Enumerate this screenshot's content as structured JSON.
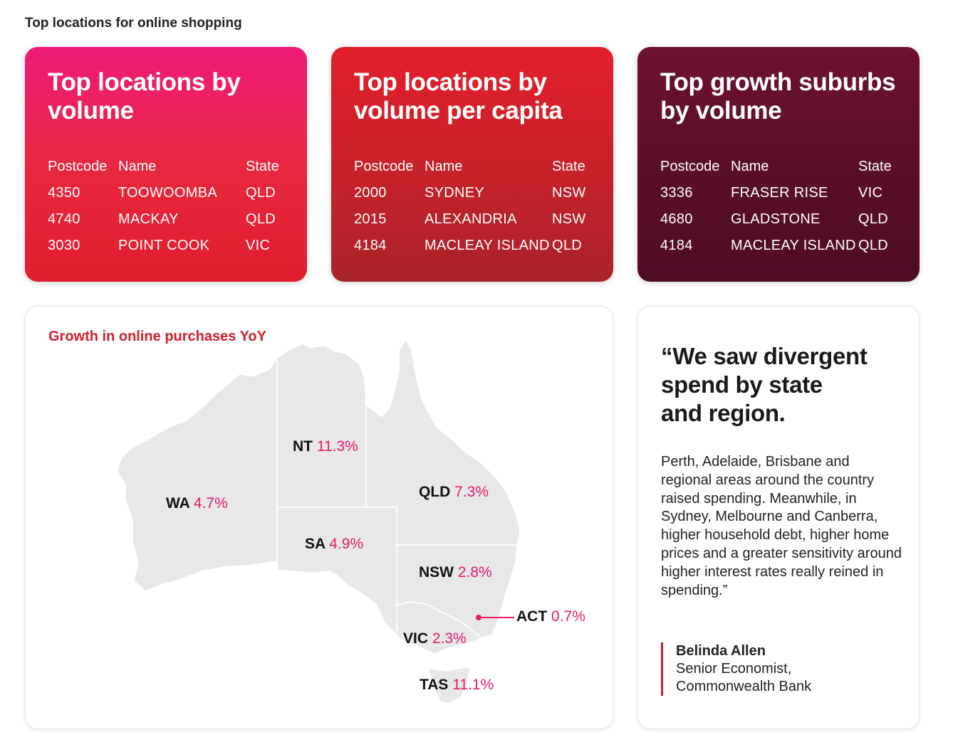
{
  "page_title": "Top locations for online shopping",
  "cards": [
    {
      "title_line1": "Top locations by",
      "title_line2": "volume",
      "headers": [
        "Postcode",
        "Name",
        "State"
      ],
      "rows": [
        [
          "4350",
          "TOOWOOMBA",
          "QLD"
        ],
        [
          "4740",
          "MACKAY",
          "QLD"
        ],
        [
          "3030",
          "POINT COOK",
          "VIC"
        ]
      ]
    },
    {
      "title_line1": "Top locations by",
      "title_line2": "volume per capita",
      "headers": [
        "Postcode",
        "Name",
        "State"
      ],
      "rows": [
        [
          "2000",
          "SYDNEY",
          "NSW"
        ],
        [
          "2015",
          "ALEXANDRIA",
          "NSW"
        ],
        [
          "4184",
          "MACLEAY ISLAND",
          "QLD"
        ]
      ]
    },
    {
      "title_line1": "Top growth suburbs",
      "title_line2": "by volume",
      "headers": [
        "Postcode",
        "Name",
        "State"
      ],
      "rows": [
        [
          "3336",
          "FRASER RISE",
          "VIC"
        ],
        [
          "4680",
          "GLADSTONE",
          "QLD"
        ],
        [
          "4184",
          "MACLEAY ISLAND",
          "QLD"
        ]
      ]
    }
  ],
  "chart_data": {
    "type": "map",
    "title": "Growth in online purchases YoY",
    "unit": "%",
    "regions": [
      {
        "code": "WA",
        "value": 4.7,
        "label": "4.7%"
      },
      {
        "code": "NT",
        "value": 11.3,
        "label": "11.3%"
      },
      {
        "code": "QLD",
        "value": 7.3,
        "label": "7.3%"
      },
      {
        "code": "SA",
        "value": 4.9,
        "label": "4.9%"
      },
      {
        "code": "NSW",
        "value": 2.8,
        "label": "2.8%"
      },
      {
        "code": "ACT",
        "value": 0.7,
        "label": "0.7%"
      },
      {
        "code": "VIC",
        "value": 2.3,
        "label": "2.3%"
      },
      {
        "code": "TAS",
        "value": 11.1,
        "label": "11.1%"
      }
    ],
    "colors": {
      "map_fill": "#e8e8e8",
      "value_text": "#e6196b",
      "title": "#d0202e"
    }
  },
  "quote": {
    "line1": "“We saw divergent",
    "line2": "spend by state",
    "line3": "and region.",
    "body": "Perth, Adelaide, Brisbane and regional areas around the country raised spending. Meanwhile, in Sydney, Melbourne and Canberra, higher household debt, higher home prices and a greater sensitivity around higher interest rates really reined in spending.”",
    "author": "Belinda Allen",
    "role_line1": "Senior Economist,",
    "role_line2": "Commonwealth Bank"
  }
}
